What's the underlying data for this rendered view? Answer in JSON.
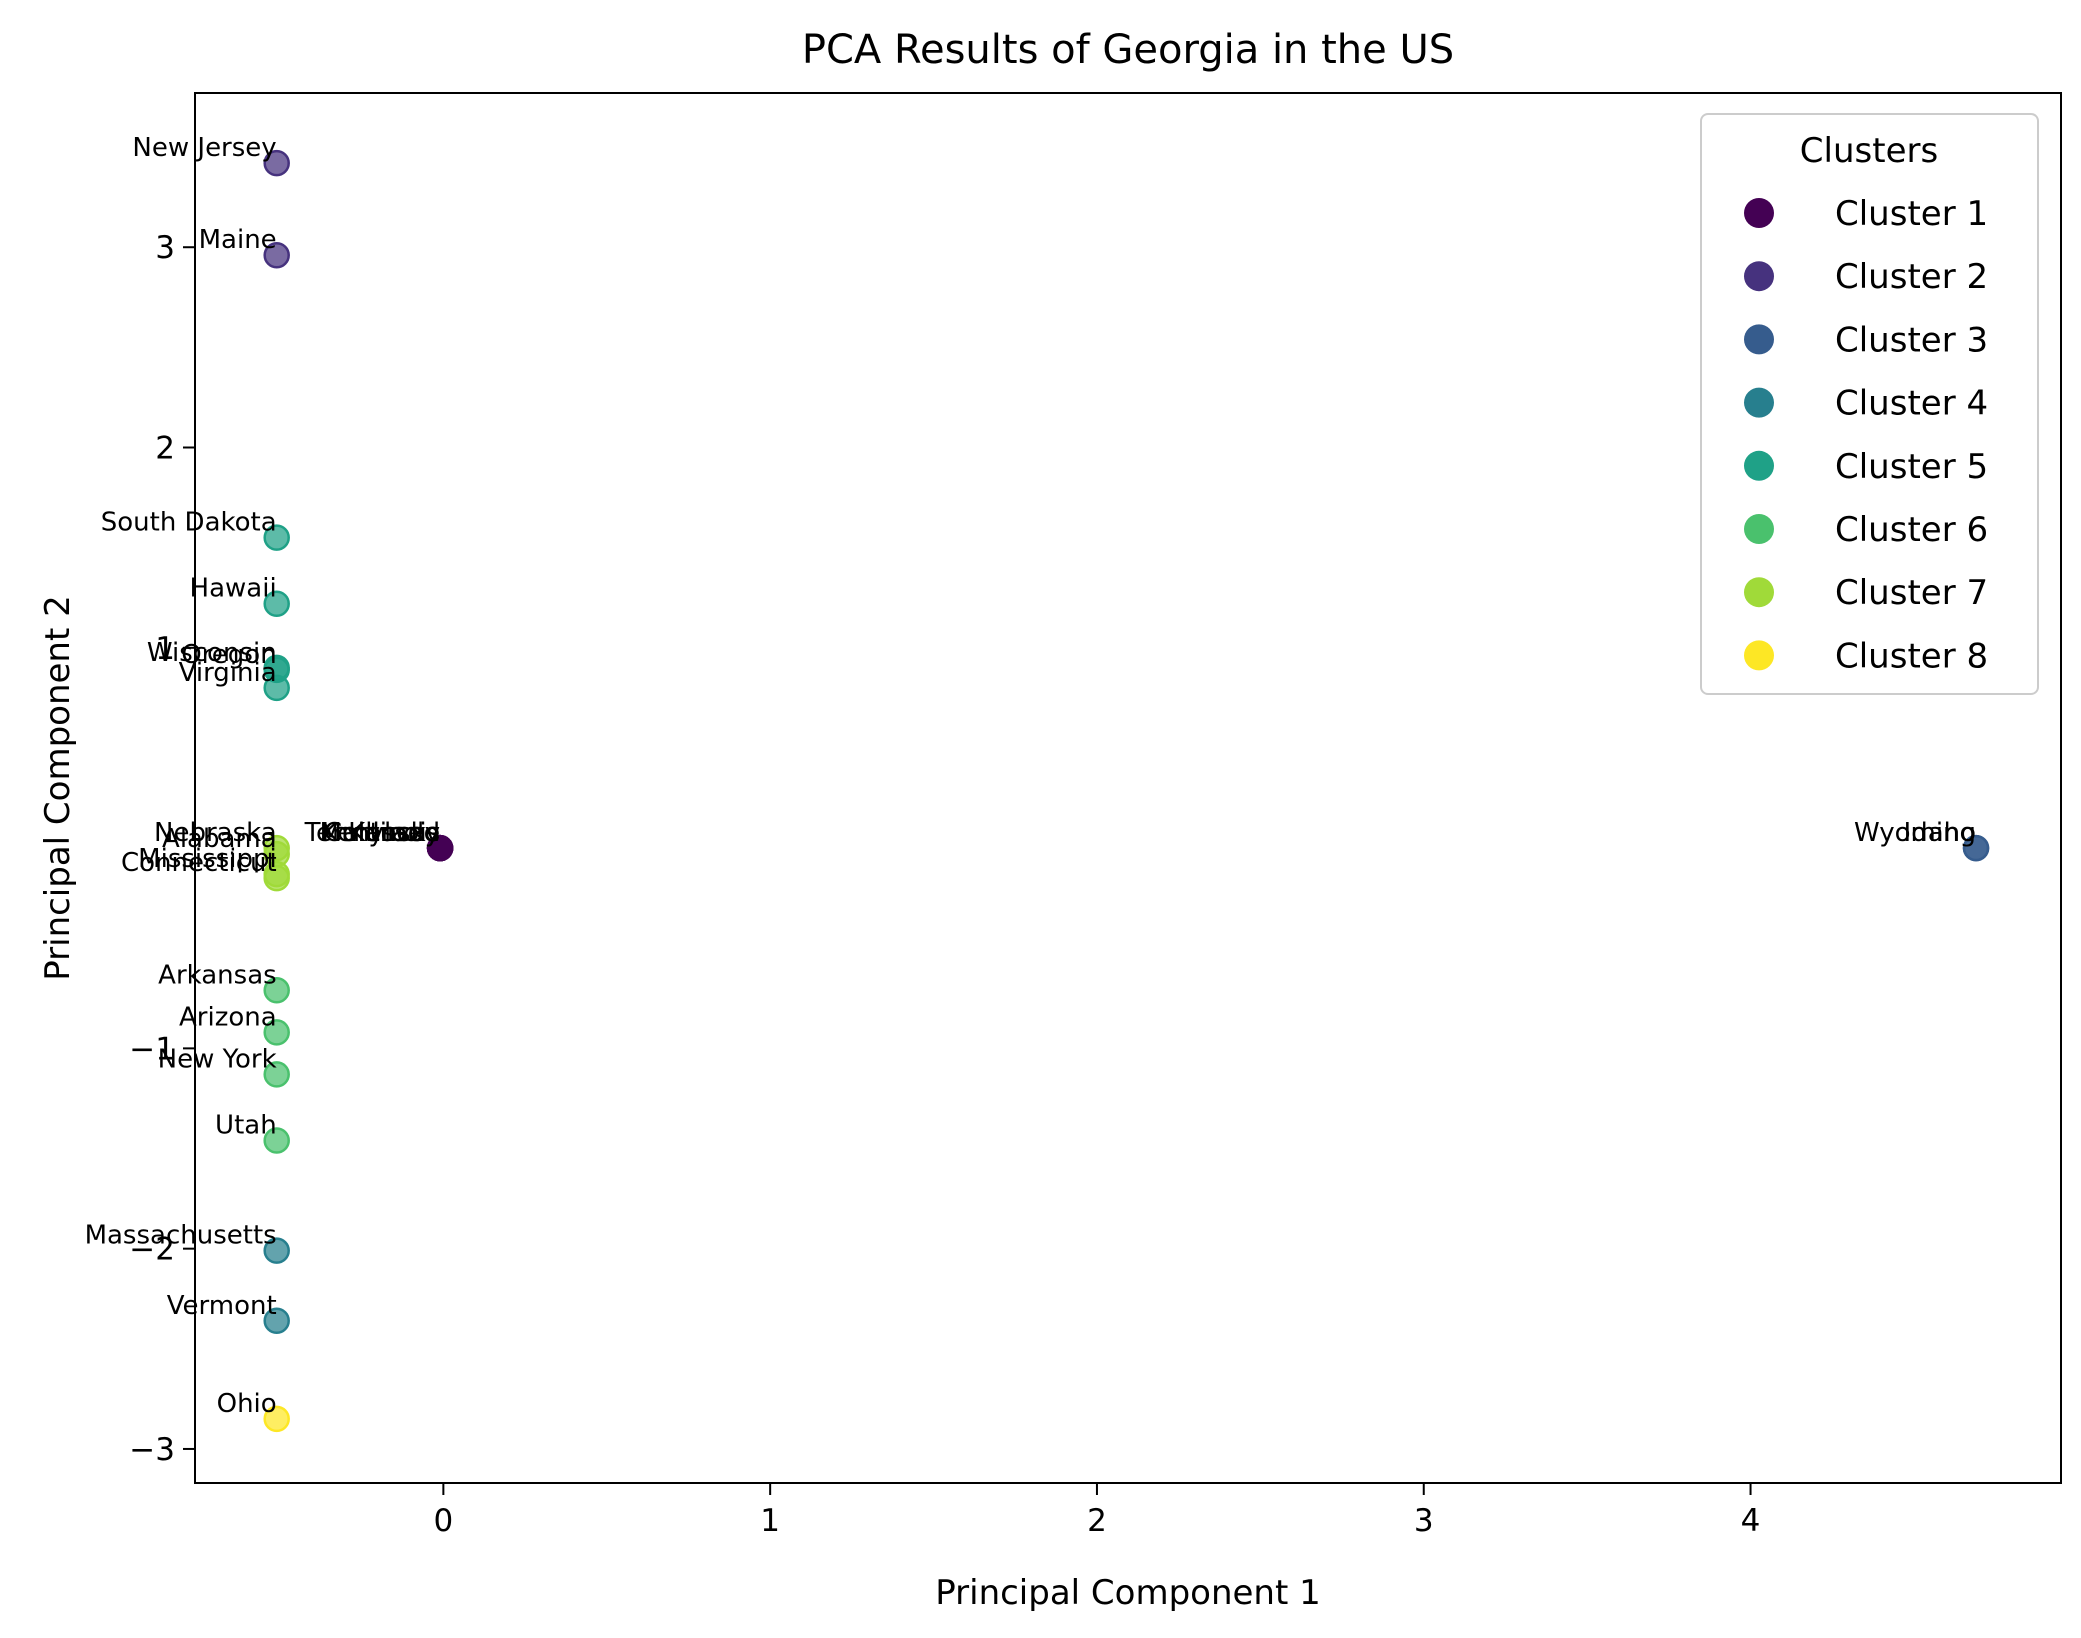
{
  "chart_data": {
    "type": "scatter",
    "title": "PCA Results of Georgia in the US",
    "xlabel": "Principal Component 1",
    "ylabel": "Principal Component 2",
    "xlim": [
      -0.76,
      4.95
    ],
    "ylim": [
      -3.17,
      3.77
    ],
    "xticks": [
      0,
      1,
      2,
      3,
      4
    ],
    "yticks": [
      -3,
      -2,
      -1,
      1,
      2,
      3
    ],
    "xtick_labels": [
      "0",
      "1",
      "2",
      "3",
      "4"
    ],
    "ytick_labels": [
      "−3",
      "−2",
      "−1",
      "1",
      "2",
      "3"
    ],
    "grid": false,
    "legend": {
      "title": "Clusters",
      "placement": "top-right",
      "entries": [
        "Cluster 1",
        "Cluster 2",
        "Cluster 3",
        "Cluster 4",
        "Cluster 5",
        "Cluster 6",
        "Cluster 7",
        "Cluster 8"
      ]
    },
    "cluster_colors": [
      "#440154",
      "#46327e",
      "#365c8d",
      "#277f8e",
      "#1fa187",
      "#4ac16d",
      "#a0da39",
      "#fde725"
    ],
    "points": [
      {
        "label": "New Jersey",
        "x": -0.51,
        "y": 3.42,
        "cluster": 2
      },
      {
        "label": "Maine",
        "x": -0.51,
        "y": 2.96,
        "cluster": 2
      },
      {
        "label": "South Dakota",
        "x": -0.51,
        "y": 1.55,
        "cluster": 5
      },
      {
        "label": "Hawaii",
        "x": -0.51,
        "y": 1.22,
        "cluster": 5
      },
      {
        "label": "Wisconsin",
        "x": -0.51,
        "y": 0.9,
        "cluster": 5
      },
      {
        "label": "Oregon",
        "x": -0.51,
        "y": 0.89,
        "cluster": 5
      },
      {
        "label": "Virginia",
        "x": -0.51,
        "y": 0.8,
        "cluster": 5
      },
      {
        "label": "Nebraska",
        "x": -0.51,
        "y": 0.0,
        "cluster": 7
      },
      {
        "label": "Alabama",
        "x": -0.51,
        "y": -0.03,
        "cluster": 7
      },
      {
        "label": "Mississippi",
        "x": -0.51,
        "y": -0.13,
        "cluster": 7
      },
      {
        "label": "Connecticut",
        "x": -0.51,
        "y": -0.15,
        "cluster": 7
      },
      {
        "label": "Arkansas",
        "x": -0.51,
        "y": -0.71,
        "cluster": 6
      },
      {
        "label": "Arizona",
        "x": -0.51,
        "y": -0.92,
        "cluster": 6
      },
      {
        "label": "New York",
        "x": -0.51,
        "y": -1.13,
        "cluster": 6
      },
      {
        "label": "Utah",
        "x": -0.51,
        "y": -1.46,
        "cluster": 6
      },
      {
        "label": "Massachusetts",
        "x": -0.51,
        "y": -2.01,
        "cluster": 4
      },
      {
        "label": "Vermont",
        "x": -0.51,
        "y": -2.36,
        "cluster": 4
      },
      {
        "label": "Ohio",
        "x": -0.51,
        "y": -2.85,
        "cluster": 8
      },
      {
        "label": "Wyoming",
        "x": 4.69,
        "y": 0.0,
        "cluster": 3
      },
      {
        "label": "Idaho",
        "x": 4.69,
        "y": 0.0,
        "cluster": 3
      },
      {
        "label": "Kansas",
        "x": -0.01,
        "y": 0.0,
        "cluster": 1
      },
      {
        "label": "Colorado",
        "x": -0.01,
        "y": 0.0,
        "cluster": 1
      },
      {
        "label": "Maryland",
        "x": -0.01,
        "y": 0.0,
        "cluster": 1
      },
      {
        "label": "Tennessee",
        "x": -0.01,
        "y": 0.0,
        "cluster": 1
      },
      {
        "label": "Kentucky",
        "x": -0.01,
        "y": 0.0,
        "cluster": 1
      },
      {
        "label": "Illinois",
        "x": -0.01,
        "y": 0.0,
        "cluster": 1
      }
    ]
  }
}
